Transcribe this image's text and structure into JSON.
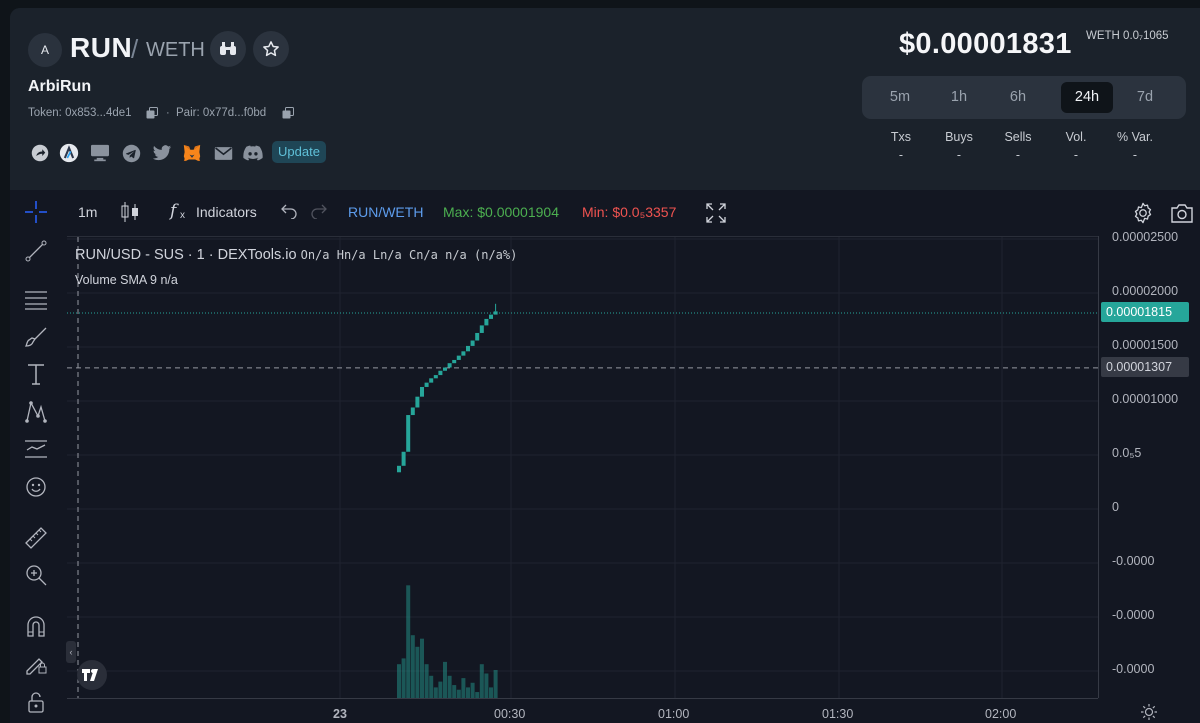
{
  "header": {
    "avatar_letter": "A",
    "symbol": "RUN",
    "slash": "/",
    "quote": "WETH",
    "name": "ArbiRun",
    "token_label": "Token: 0x853...4de1",
    "separator": "·",
    "pair_label": "Pair: 0x77d...f0bd",
    "update_label": "Update",
    "price": "$0.00001831",
    "price_weth": "WETH 0.0₇1065"
  },
  "timeframes": [
    {
      "label": "5m",
      "active": false
    },
    {
      "label": "1h",
      "active": false
    },
    {
      "label": "6h",
      "active": false
    },
    {
      "label": "24h",
      "active": true
    },
    {
      "label": "7d",
      "active": false
    }
  ],
  "stats": [
    {
      "label": "Txs",
      "value": "-"
    },
    {
      "label": "Buys",
      "value": "-"
    },
    {
      "label": "Sells",
      "value": "-"
    },
    {
      "label": "Vol.",
      "value": "-"
    },
    {
      "label": "% Var.",
      "value": "-"
    }
  ],
  "chart_toolbar": {
    "interval": "1m",
    "fx": "f",
    "fx_sub": "x",
    "indicators": "Indicators",
    "pair": "RUN/WETH",
    "max": "Max: $0.00001904",
    "min": "Min: $0.0₅3357"
  },
  "legend": {
    "series": "RUN/USD - SUS · 1 · DEXTools.io",
    "ohlc": "On/a Hn/a Ln/a Cn/a n/a (n/a%)",
    "volume": "Volume SMA 9  n/a"
  },
  "colors": {
    "up": "#26a69a",
    "price_tag": "#26a69a",
    "crosshair_tag": "#363a45",
    "max": "#4caf50",
    "min": "#ef5350",
    "pair": "#5d9cec"
  },
  "chart_data": {
    "type": "candlestick",
    "title": "",
    "yticks": [
      "0.00002500",
      "0.00002000",
      "0.00001500",
      "0.00001000",
      "0.0₅5",
      "0",
      "-0.0000",
      "-0.0000",
      "-0.0000"
    ],
    "ytick_values": [
      2.5e-05,
      2e-05,
      1.5e-05,
      1e-05,
      5e-06,
      0,
      -5e-06,
      -1e-05,
      -1.5e-05
    ],
    "xticks": [
      "23",
      "00:30",
      "01:00",
      "01:30",
      "02:00"
    ],
    "current_price_tag": "0.00001815",
    "current_price": 1.815e-05,
    "crosshair_tag": "0.00001307",
    "crosshair_price": 1.307e-05,
    "candles": [
      {
        "o": 3.4e-06,
        "c": 4e-06
      },
      {
        "o": 4e-06,
        "c": 5.3e-06
      },
      {
        "o": 5.3e-06,
        "c": 8.7e-06
      },
      {
        "o": 8.7e-06,
        "c": 9.4e-06
      },
      {
        "o": 9.4e-06,
        "c": 1.04e-05
      },
      {
        "o": 1.04e-05,
        "c": 1.13e-05
      },
      {
        "o": 1.13e-05,
        "c": 1.17e-05
      },
      {
        "o": 1.17e-05,
        "c": 1.21e-05
      },
      {
        "o": 1.21e-05,
        "c": 1.24e-05
      },
      {
        "o": 1.24e-05,
        "c": 1.28e-05
      },
      {
        "o": 1.28e-05,
        "c": 1.31e-05
      },
      {
        "o": 1.31e-05,
        "c": 1.35e-05
      },
      {
        "o": 1.35e-05,
        "c": 1.38e-05
      },
      {
        "o": 1.38e-05,
        "c": 1.42e-05
      },
      {
        "o": 1.42e-05,
        "c": 1.46e-05
      },
      {
        "o": 1.46e-05,
        "c": 1.51e-05
      },
      {
        "o": 1.51e-05,
        "c": 1.56e-05
      },
      {
        "o": 1.56e-05,
        "c": 1.63e-05
      },
      {
        "o": 1.63e-05,
        "c": 1.7e-05
      },
      {
        "o": 1.7e-05,
        "c": 1.76e-05
      },
      {
        "o": 1.76e-05,
        "c": 1.8e-05
      },
      {
        "o": 1.8e-05,
        "c": 1.83e-05,
        "h": 1.9e-05
      }
    ],
    "volume_relative": [
      0.3,
      0.35,
      0.98,
      0.55,
      0.45,
      0.52,
      0.3,
      0.2,
      0.1,
      0.15,
      0.32,
      0.2,
      0.12,
      0.08,
      0.18,
      0.1,
      0.14,
      0.06,
      0.3,
      0.22,
      0.1,
      0.25
    ]
  }
}
